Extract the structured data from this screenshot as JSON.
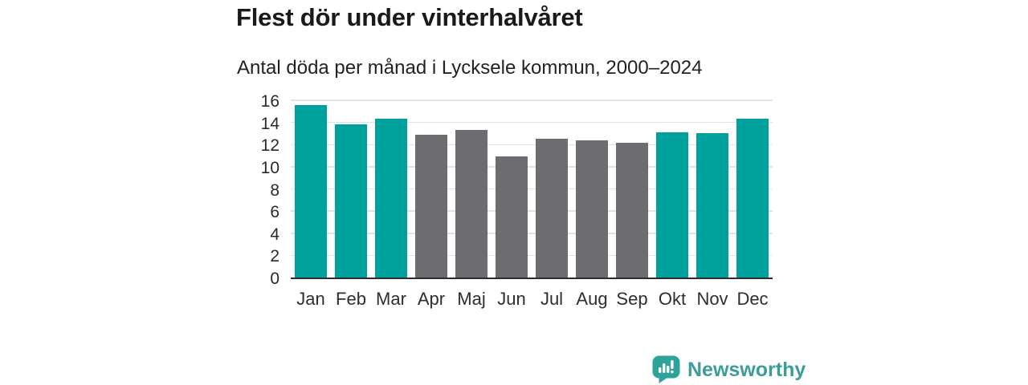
{
  "header": {
    "title": "Flest dör under vinterhalvåret",
    "subtitle": "Antal döda per månad i Lycksele kommun, 2000–2024"
  },
  "chart_data": {
    "type": "bar",
    "title": "Flest dör under vinterhalvåret",
    "subtitle": "Antal döda per månad i Lycksele kommun, 2000–2024",
    "categories": [
      "Jan",
      "Feb",
      "Mar",
      "Apr",
      "Maj",
      "Jun",
      "Jul",
      "Aug",
      "Sep",
      "Okt",
      "Nov",
      "Dec"
    ],
    "values": [
      15.6,
      13.8,
      14.3,
      12.9,
      13.3,
      10.9,
      12.5,
      12.4,
      12.2,
      13.1,
      13.0,
      14.3
    ],
    "bar_colors": [
      "teal",
      "teal",
      "teal",
      "gray",
      "gray",
      "gray",
      "gray",
      "gray",
      "gray",
      "teal",
      "teal",
      "teal"
    ],
    "colors": {
      "teal": "#00a19c",
      "gray": "#6c6c71"
    },
    "xlabel": "",
    "ylabel": "",
    "ylim": [
      0,
      16
    ],
    "yticks": [
      0,
      2,
      4,
      6,
      8,
      10,
      12,
      14,
      16
    ],
    "grid": true,
    "legend": false
  },
  "branding": {
    "logo_text": "Newsworthy",
    "logo_icon": "bar-chart-speech-bubble-icon",
    "logo_icon_color": "#2fa29c",
    "logo_text_color": "#3b9d9a"
  }
}
